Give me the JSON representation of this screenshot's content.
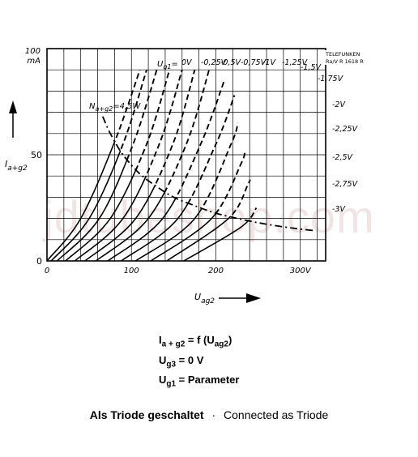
{
  "chart_data": {
    "type": "line",
    "y_axis": {
      "top_label": "100",
      "unit": "mA",
      "ticks": [
        "0",
        "50"
      ],
      "name_main": "I",
      "name_sub": "a+g2",
      "range": [
        0,
        100
      ]
    },
    "x_axis": {
      "ticks": [
        "0",
        "100",
        "200",
        "300V"
      ],
      "name_main": "U",
      "name_sub": "ag2",
      "range": [
        0,
        330
      ]
    },
    "grid": true,
    "brand": {
      "line1": "TELEFUNKEN",
      "line2": "Ra/V R 1618 R"
    },
    "legend_prefix_main": "U",
    "legend_prefix_sub": "g1",
    "series": [
      {
        "name": "0V",
        "values": [
          [
            0,
            0
          ],
          [
            40,
            20
          ],
          [
            80,
            56
          ],
          [
            110,
            90
          ]
        ]
      },
      {
        "name": "-0,25V",
        "values": [
          [
            5,
            0
          ],
          [
            50,
            20
          ],
          [
            90,
            55
          ],
          [
            118,
            90
          ]
        ]
      },
      {
        "name": "-0,5V",
        "values": [
          [
            12,
            0
          ],
          [
            62,
            20
          ],
          [
            102,
            55
          ],
          [
            130,
            90
          ]
        ]
      },
      {
        "name": "-0,75V",
        "values": [
          [
            22,
            0
          ],
          [
            75,
            20
          ],
          [
            118,
            55
          ],
          [
            145,
            90
          ]
        ]
      },
      {
        "name": "-1V",
        "values": [
          [
            33,
            0
          ],
          [
            90,
            20
          ],
          [
            133,
            55
          ],
          [
            160,
            90
          ]
        ]
      },
      {
        "name": "-1,25V",
        "values": [
          [
            45,
            0
          ],
          [
            105,
            20
          ],
          [
            149,
            55
          ],
          [
            175,
            90
          ]
        ]
      },
      {
        "name": "-1,5V",
        "values": [
          [
            58,
            0
          ],
          [
            120,
            20
          ],
          [
            165,
            55
          ],
          [
            192,
            90
          ]
        ]
      },
      {
        "name": "-1,75V",
        "values": [
          [
            72,
            0
          ],
          [
            137,
            20
          ],
          [
            182,
            55
          ],
          [
            210,
            85
          ]
        ]
      },
      {
        "name": "-2V",
        "values": [
          [
            88,
            0
          ],
          [
            155,
            20
          ],
          [
            200,
            55
          ],
          [
            222,
            78
          ]
        ]
      },
      {
        "name": "-2,25V",
        "values": [
          [
            105,
            0
          ],
          [
            175,
            20
          ],
          [
            218,
            55
          ],
          [
            226,
            65
          ]
        ]
      },
      {
        "name": "-2,5V",
        "values": [
          [
            123,
            0
          ],
          [
            195,
            20
          ],
          [
            230,
            46
          ],
          [
            234,
            52
          ]
        ]
      },
      {
        "name": "-2,75V",
        "values": [
          [
            142,
            0
          ],
          [
            215,
            20
          ],
          [
            238,
            36
          ],
          [
            240,
            38
          ]
        ]
      },
      {
        "name": "-3V",
        "values": [
          [
            162,
            0
          ],
          [
            230,
            16
          ],
          [
            248,
            25
          ]
        ]
      }
    ],
    "power_hyperbola": {
      "label_main": "N",
      "label_sub": "a+g2",
      "label_value": "=4,5W",
      "values": [
        [
          66,
          68
        ],
        [
          75,
          60
        ],
        [
          90,
          50
        ],
        [
          110,
          41
        ],
        [
          130,
          35
        ],
        [
          150,
          30
        ],
        [
          175,
          26
        ],
        [
          200,
          22.5
        ],
        [
          230,
          19.6
        ],
        [
          260,
          17.3
        ],
        [
          290,
          15.5
        ],
        [
          315,
          14.3
        ]
      ]
    }
  },
  "conditions": [
    {
      "main": "I",
      "sub": "a + g2",
      "rest": "= f (U",
      "rest_sub": "ag2",
      "tail": ")"
    },
    {
      "main": "U",
      "sub": "g3",
      "rest": "= 0 V",
      "rest_sub": "",
      "tail": ""
    },
    {
      "main": "U",
      "sub": "g1",
      "rest": "= Parameter",
      "rest_sub": "",
      "tail": ""
    }
  ],
  "caption": {
    "german": "Als Triode geschaltet",
    "separator": "·",
    "english": "Connected as Triode"
  },
  "watermark": "jdtubeshop.com"
}
